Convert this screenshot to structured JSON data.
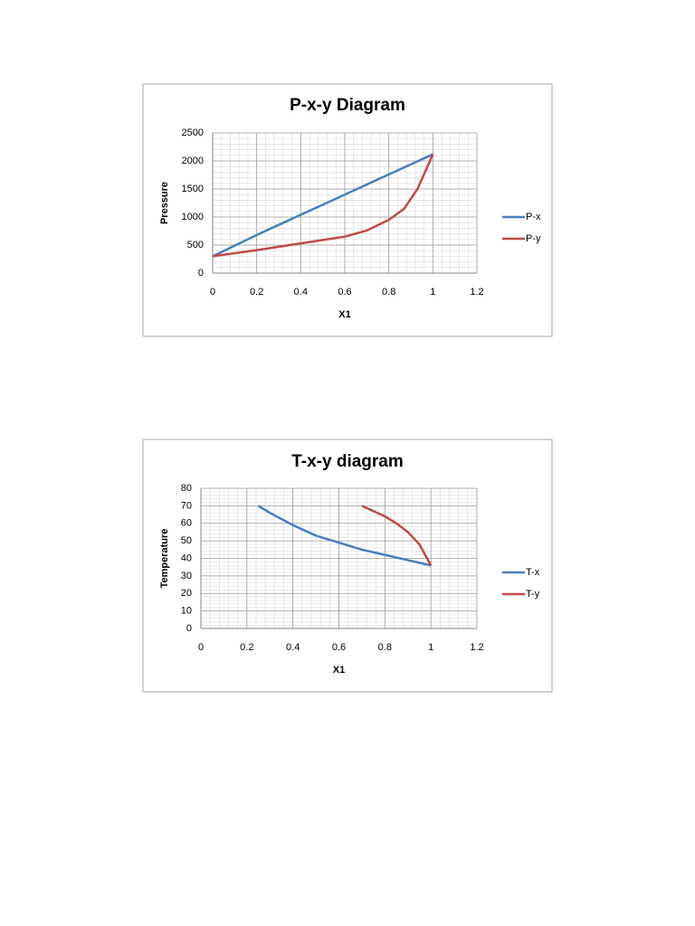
{
  "chart_data": [
    {
      "type": "line",
      "title": "P-x-y Diagram",
      "x_label": "X1",
      "y_label": "Pressure",
      "xlim": [
        0,
        1.2
      ],
      "xticks": [
        0,
        0.2,
        0.4,
        0.6,
        0.8,
        1,
        1.2
      ],
      "ylim": [
        0,
        2500
      ],
      "yticks": [
        0,
        500,
        1000,
        1500,
        2000,
        2500
      ],
      "grid": true,
      "minor_grid": true,
      "legend": "right",
      "series": [
        {
          "name": "P-x",
          "color": "#4a7ebb",
          "x": [
            0,
            0.1,
            0.2,
            0.3,
            0.4,
            0.5,
            0.6,
            0.7,
            0.8,
            0.9,
            1
          ],
          "values": [
            300,
            490,
            680,
            860,
            1040,
            1220,
            1400,
            1580,
            1760,
            1940,
            2120
          ]
        },
        {
          "name": "P-y",
          "color": "#be4b48",
          "x": [
            0,
            0.2,
            0.4,
            0.6,
            0.7,
            0.8,
            0.87,
            0.93,
            0.97,
            1
          ],
          "values": [
            300,
            410,
            530,
            650,
            760,
            950,
            1150,
            1500,
            1850,
            2120
          ]
        }
      ]
    },
    {
      "type": "line",
      "title": "T-x-y diagram",
      "x_label": "X1",
      "y_label": "Temperature",
      "xlim": [
        0,
        1.2
      ],
      "xticks": [
        0,
        0.2,
        0.4,
        0.6,
        0.8,
        1,
        1.2
      ],
      "ylim": [
        0,
        80
      ],
      "yticks": [
        0,
        10,
        20,
        30,
        40,
        50,
        60,
        70,
        80
      ],
      "grid": true,
      "minor_grid": true,
      "legend": "right",
      "series": [
        {
          "name": "T-x",
          "color": "#4a7ebb",
          "x": [
            0.25,
            0.3,
            0.4,
            0.5,
            0.6,
            0.7,
            0.8,
            0.9,
            1
          ],
          "values": [
            70,
            66,
            59,
            53,
            49,
            45,
            42,
            39,
            36
          ]
        },
        {
          "name": "T-y",
          "color": "#be4b48",
          "x": [
            0.7,
            0.8,
            0.85,
            0.9,
            0.95,
            1
          ],
          "values": [
            70,
            64,
            60,
            55,
            48,
            36
          ]
        }
      ]
    }
  ]
}
